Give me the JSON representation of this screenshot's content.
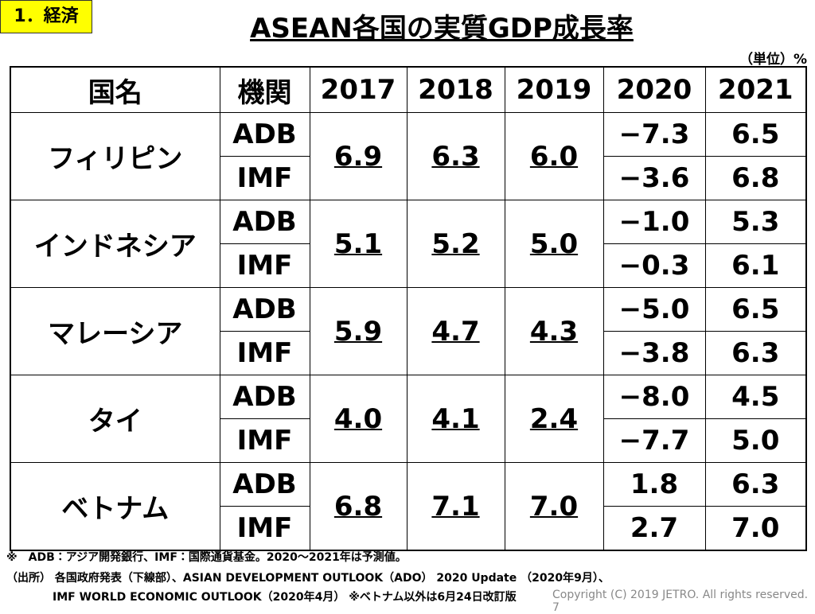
{
  "header": {
    "tag": "1．経済",
    "title": "ASEAN各国の実質GDP成長率",
    "unit": "（単位）%"
  },
  "table": {
    "columns": [
      "国名",
      "機関",
      "2017",
      "2018",
      "2019",
      "2020",
      "2021"
    ],
    "rows": [
      {
        "country": "フィリピン",
        "common": [
          "6.9",
          "6.3",
          "6.0"
        ],
        "agencies": [
          {
            "name": "ADB",
            "values": [
              "−7.3",
              "6.5"
            ]
          },
          {
            "name": "IMF",
            "values": [
              "−3.6",
              "6.8"
            ]
          }
        ]
      },
      {
        "country": "インドネシア",
        "common": [
          "5.1",
          "5.2",
          "5.0"
        ],
        "agencies": [
          {
            "name": "ADB",
            "values": [
              "−1.0",
              "5.3"
            ]
          },
          {
            "name": "IMF",
            "values": [
              "−0.3",
              "6.1"
            ]
          }
        ]
      },
      {
        "country": "マレーシア",
        "common": [
          "5.9",
          "4.7",
          "4.3"
        ],
        "agencies": [
          {
            "name": "ADB",
            "values": [
              "−5.0",
              "6.5"
            ]
          },
          {
            "name": "IMF",
            "values": [
              "−3.8",
              "6.3"
            ]
          }
        ]
      },
      {
        "country": "タイ",
        "common": [
          "4.0",
          "4.1",
          "2.4"
        ],
        "agencies": [
          {
            "name": "ADB",
            "values": [
              "−8.0",
              "4.5"
            ]
          },
          {
            "name": "IMF",
            "values": [
              "−7.7",
              "5.0"
            ]
          }
        ]
      },
      {
        "country": "ベトナム",
        "common": [
          "6.8",
          "7.1",
          "7.0"
        ],
        "agencies": [
          {
            "name": "ADB",
            "values": [
              "1.8",
              "6.3"
            ]
          },
          {
            "name": "IMF",
            "values": [
              "2.7",
              "7.0"
            ]
          }
        ]
      }
    ]
  },
  "footnotes": [
    "※　ADB：アジア開発銀行、IMF：国際通貨基金。2020～2021年は予測値。",
    "（出所） 各国政府発表（下線部）、ASIAN DEVELOPMENT OUTLOOK（ADO） 2020 Update （2020年9月）、",
    "IMF WORLD ECONOMIC OUTLOOK（2020年4月） ※ベトナム以外は6月24日改訂版"
  ],
  "copyright": "Copyright (C) 2019 JETRO. All rights reserved.",
  "page": "7"
}
